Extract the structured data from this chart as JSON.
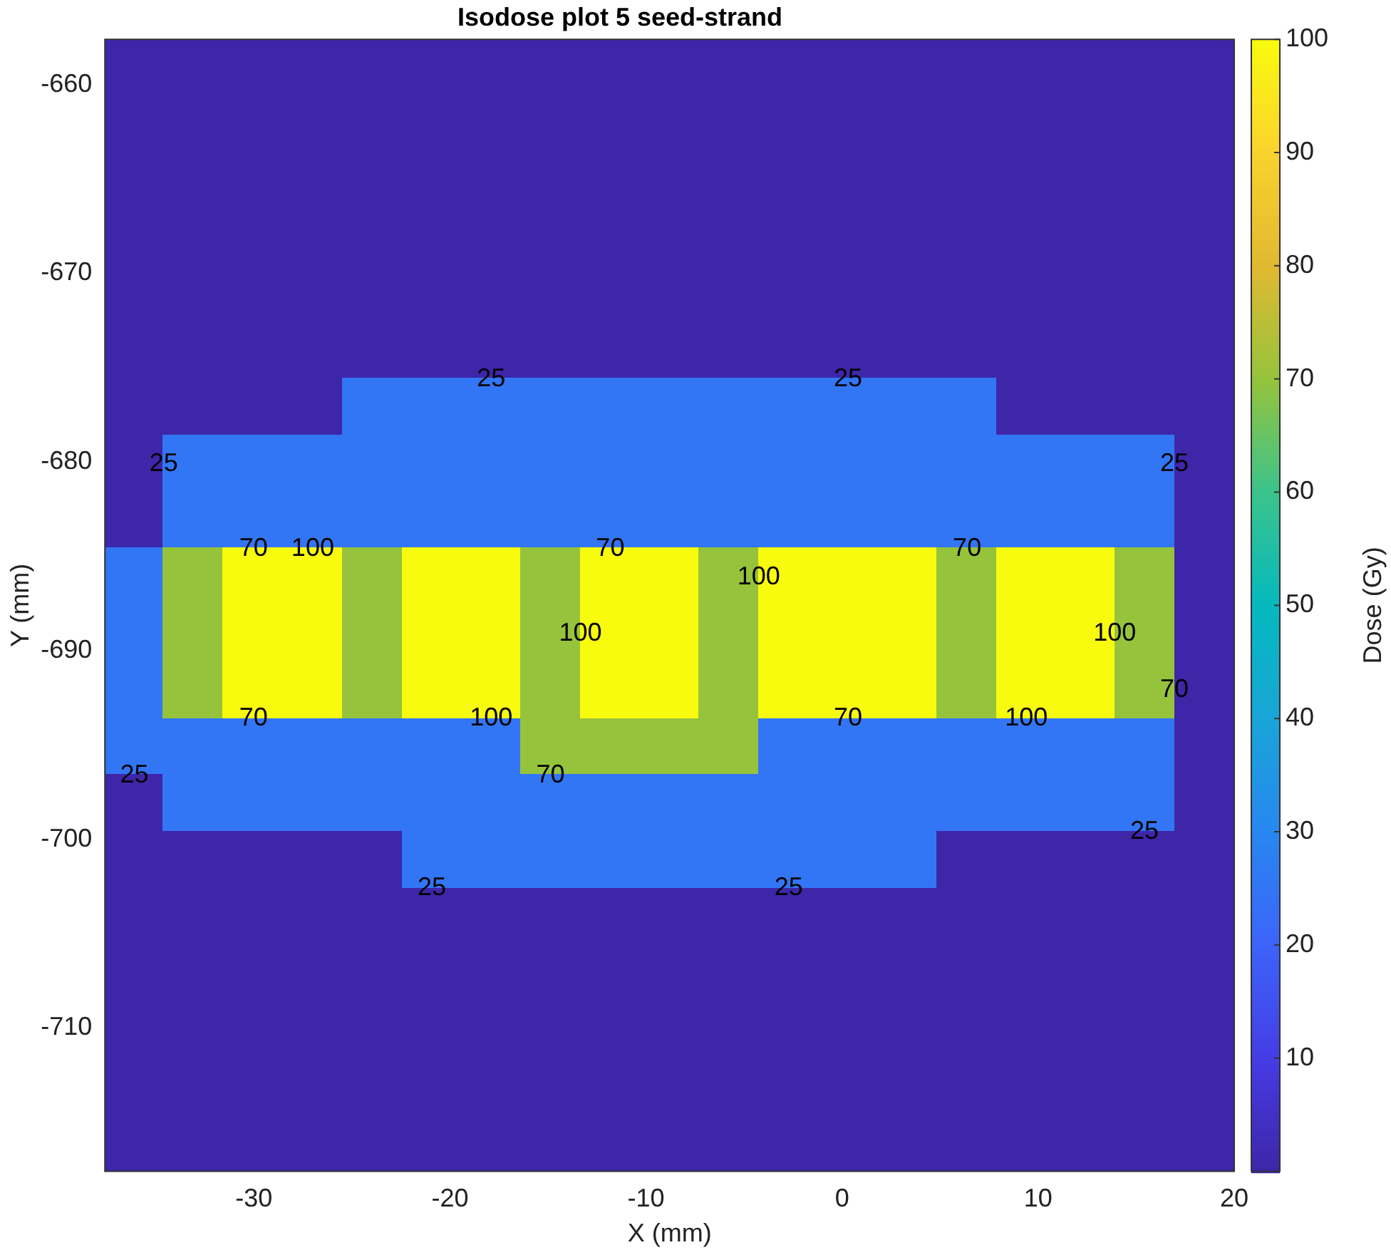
{
  "chart_data": {
    "type": "heatmap",
    "title": "Isodose plot 5 seed-strand",
    "xlabel": "X (mm)",
    "ylabel": "Y (mm)",
    "clabel": "Dose (Gy)",
    "x": [
      -36.1,
      -33.1,
      -30.0,
      -27.0,
      -24.0,
      -20.9,
      -17.9,
      -14.9,
      -11.8,
      -8.8,
      -5.8,
      -2.7,
      0.3,
      3.3,
      6.4,
      9.4,
      12.4,
      15.4,
      18.5
    ],
    "y": [
      -659.1,
      -662.1,
      -665.1,
      -668.1,
      -671.1,
      -674.1,
      -677.1,
      -680.1,
      -683.1,
      -686.1,
      -689.1,
      -692.1,
      -695.1,
      -698.1,
      -701.1,
      -704.1,
      -707.1,
      -710.1,
      -713.1,
      -716.1
    ],
    "xlim": [
      -37.6,
      20
    ],
    "xticks": [
      -30,
      -20,
      -10,
      0,
      10,
      20
    ],
    "ylim": [
      -717.6,
      -657.6
    ],
    "yticks": [
      -710,
      -700,
      -690,
      -680,
      -670,
      -660
    ],
    "clim": [
      0,
      100
    ],
    "cticks": [
      10,
      20,
      30,
      40,
      50,
      60,
      70,
      80,
      90,
      100
    ],
    "grid": false,
    "cells": [
      [
        0,
        0,
        0,
        0,
        0,
        0,
        0,
        0,
        0,
        0,
        0,
        0,
        0,
        0,
        0,
        0,
        0,
        0,
        0
      ],
      [
        0,
        0,
        0,
        0,
        0,
        0,
        0,
        0,
        0,
        0,
        0,
        0,
        0,
        0,
        0,
        0,
        0,
        0,
        0
      ],
      [
        0,
        0,
        0,
        0,
        0,
        0,
        0,
        0,
        0,
        0,
        0,
        0,
        0,
        0,
        0,
        0,
        0,
        0,
        0
      ],
      [
        0,
        0,
        0,
        0,
        0,
        0,
        0,
        0,
        0,
        0,
        0,
        0,
        0,
        0,
        0,
        0,
        0,
        0,
        0
      ],
      [
        0,
        0,
        0,
        0,
        0,
        0,
        0,
        0,
        0,
        0,
        0,
        0,
        0,
        0,
        0,
        0,
        0,
        0,
        0
      ],
      [
        0,
        0,
        0,
        0,
        0,
        0,
        0,
        0,
        0,
        0,
        0,
        0,
        0,
        0,
        0,
        0,
        0,
        0,
        0
      ],
      [
        0,
        0,
        0,
        0,
        25,
        25,
        25,
        25,
        25,
        25,
        25,
        25,
        25,
        25,
        25,
        0,
        0,
        0,
        0
      ],
      [
        0,
        25,
        25,
        25,
        25,
        25,
        25,
        25,
        25,
        25,
        25,
        25,
        25,
        25,
        25,
        25,
        25,
        25,
        0
      ],
      [
        0,
        25,
        25,
        25,
        25,
        25,
        25,
        25,
        25,
        25,
        25,
        25,
        25,
        25,
        25,
        25,
        25,
        25,
        0
      ],
      [
        25,
        70,
        100,
        100,
        70,
        100,
        100,
        70,
        100,
        100,
        70,
        100,
        100,
        100,
        70,
        100,
        100,
        70,
        0
      ],
      [
        25,
        70,
        100,
        100,
        70,
        100,
        100,
        70,
        100,
        100,
        70,
        100,
        100,
        100,
        70,
        100,
        100,
        70,
        0
      ],
      [
        25,
        70,
        100,
        100,
        70,
        100,
        100,
        70,
        100,
        100,
        70,
        100,
        100,
        100,
        70,
        100,
        100,
        70,
        0
      ],
      [
        25,
        25,
        25,
        25,
        25,
        25,
        25,
        70,
        70,
        70,
        70,
        25,
        25,
        25,
        25,
        25,
        25,
        25,
        0
      ],
      [
        0,
        25,
        25,
        25,
        25,
        25,
        25,
        25,
        25,
        25,
        25,
        25,
        25,
        25,
        25,
        25,
        25,
        25,
        0
      ],
      [
        0,
        0,
        0,
        0,
        0,
        25,
        25,
        25,
        25,
        25,
        25,
        25,
        25,
        25,
        0,
        0,
        0,
        0,
        0
      ],
      [
        0,
        0,
        0,
        0,
        0,
        0,
        0,
        0,
        0,
        0,
        0,
        0,
        0,
        0,
        0,
        0,
        0,
        0,
        0
      ],
      [
        0,
        0,
        0,
        0,
        0,
        0,
        0,
        0,
        0,
        0,
        0,
        0,
        0,
        0,
        0,
        0,
        0,
        0,
        0
      ],
      [
        0,
        0,
        0,
        0,
        0,
        0,
        0,
        0,
        0,
        0,
        0,
        0,
        0,
        0,
        0,
        0,
        0,
        0,
        0
      ],
      [
        0,
        0,
        0,
        0,
        0,
        0,
        0,
        0,
        0,
        0,
        0,
        0,
        0,
        0,
        0,
        0,
        0,
        0,
        0
      ],
      [
        0,
        0,
        0,
        0,
        0,
        0,
        0,
        0,
        0,
        0,
        0,
        0,
        0,
        0,
        0,
        0,
        0,
        0,
        0
      ]
    ],
    "annotations": [
      "25",
      "25",
      "25",
      "25",
      "25",
      "25",
      "25",
      "25",
      "70",
      "70",
      "70",
      "70",
      "70",
      "70",
      "70",
      "100",
      "100",
      "100",
      "100",
      "100",
      "100"
    ]
  }
}
